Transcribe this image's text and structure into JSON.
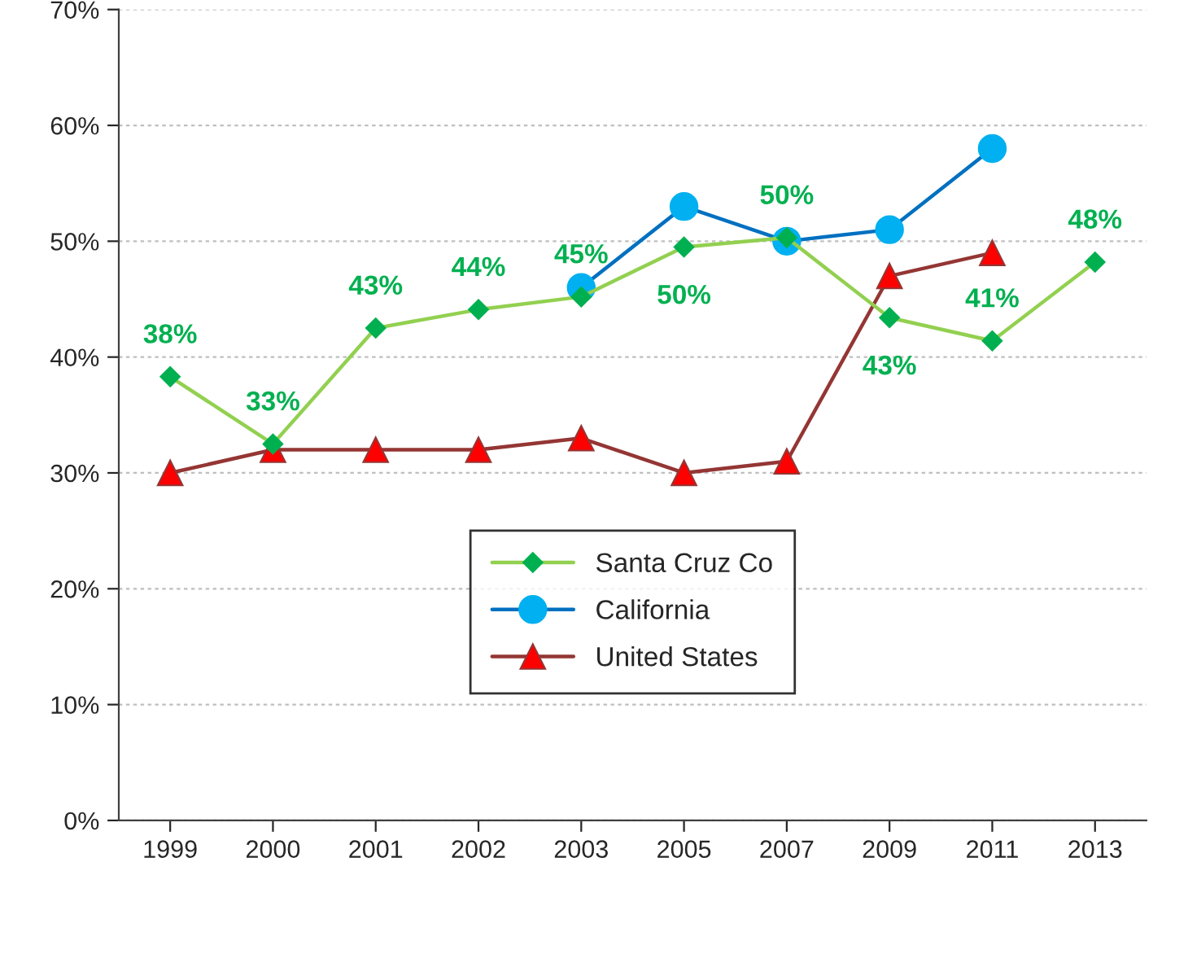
{
  "chart_data": {
    "type": "line",
    "categories": [
      "1999",
      "2000",
      "2001",
      "2002",
      "2003",
      "2005",
      "2007",
      "2009",
      "2011",
      "2013"
    ],
    "series": [
      {
        "name": "Santa Cruz Co",
        "color": "#92d050",
        "marker": "diamond",
        "values": [
          38.3,
          32.5,
          42.5,
          44.1,
          45.2,
          49.5,
          50.3,
          43.4,
          41.4,
          48.2
        ],
        "value_labels": [
          "38%",
          "33%",
          "43%",
          "44%",
          "45%",
          "50%",
          "50%",
          "43%",
          "41%",
          "48%"
        ]
      },
      {
        "name": "California",
        "color": "#0070c0",
        "marker": "circle",
        "values": [
          null,
          null,
          null,
          null,
          46,
          53,
          50,
          51,
          58,
          null
        ]
      },
      {
        "name": "United States",
        "color": "#943634",
        "marker": "triangle",
        "values": [
          30,
          32,
          32,
          32,
          33,
          30,
          31,
          47,
          49,
          null
        ]
      }
    ],
    "ylim": [
      0,
      70
    ],
    "yticks": [
      {
        "value": 0,
        "label": "0%"
      },
      {
        "value": 10,
        "label": "10%"
      },
      {
        "value": 20,
        "label": "20%"
      },
      {
        "value": 30,
        "label": "30%"
      },
      {
        "value": 40,
        "label": "40%"
      },
      {
        "value": 50,
        "label": "50%"
      },
      {
        "value": 60,
        "label": "60%"
      },
      {
        "value": 70,
        "label": "70%"
      }
    ],
    "grid": "y",
    "legend": "bottom"
  }
}
